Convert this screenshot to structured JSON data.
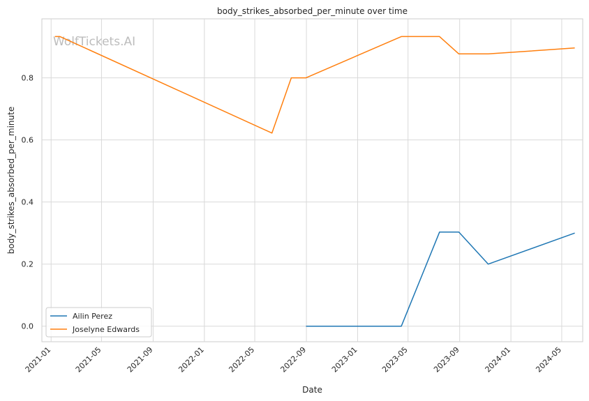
{
  "chart_data": {
    "type": "line",
    "title": "body_strikes_absorbed_per_minute over time",
    "xlabel": "Date",
    "ylabel": "body_strikes_absorbed_per_minute",
    "watermark": "WolfTickets.AI",
    "x_ticks": [
      "2021-01",
      "2021-05",
      "2021-09",
      "2022-01",
      "2022-05",
      "2022-09",
      "2023-01",
      "2023-05",
      "2023-09",
      "2024-01",
      "2024-05"
    ],
    "y_ticks": [
      0.0,
      0.2,
      0.4,
      0.6,
      0.8
    ],
    "y_tick_labels": [
      "0.0",
      "0.2",
      "0.4",
      "0.6",
      "0.8"
    ],
    "xlim": [
      "2020-12-10",
      "2024-06-20"
    ],
    "ylim": [
      -0.05,
      0.99
    ],
    "grid": true,
    "legend_position": "lower-left",
    "series": [
      {
        "name": "Ailin Perez",
        "color": "#1f77b4",
        "points": [
          {
            "x": "2022-08-31",
            "y": 0.0
          },
          {
            "x": "2023-04-15",
            "y": 0.0
          },
          {
            "x": "2023-07-15",
            "y": 0.303
          },
          {
            "x": "2023-08-30",
            "y": 0.303
          },
          {
            "x": "2023-11-08",
            "y": 0.2
          },
          {
            "x": "2024-06-01",
            "y": 0.3
          }
        ]
      },
      {
        "name": "Joselyne Edwards",
        "color": "#ff7f0e",
        "points": [
          {
            "x": "2021-01-10",
            "y": 0.933
          },
          {
            "x": "2021-01-22",
            "y": 0.933
          },
          {
            "x": "2022-06-11",
            "y": 0.622
          },
          {
            "x": "2022-07-27",
            "y": 0.8
          },
          {
            "x": "2022-08-31",
            "y": 0.8
          },
          {
            "x": "2023-04-15",
            "y": 0.933
          },
          {
            "x": "2023-07-15",
            "y": 0.933
          },
          {
            "x": "2023-08-30",
            "y": 0.877
          },
          {
            "x": "2023-11-08",
            "y": 0.877
          },
          {
            "x": "2024-06-01",
            "y": 0.896
          }
        ]
      }
    ]
  }
}
